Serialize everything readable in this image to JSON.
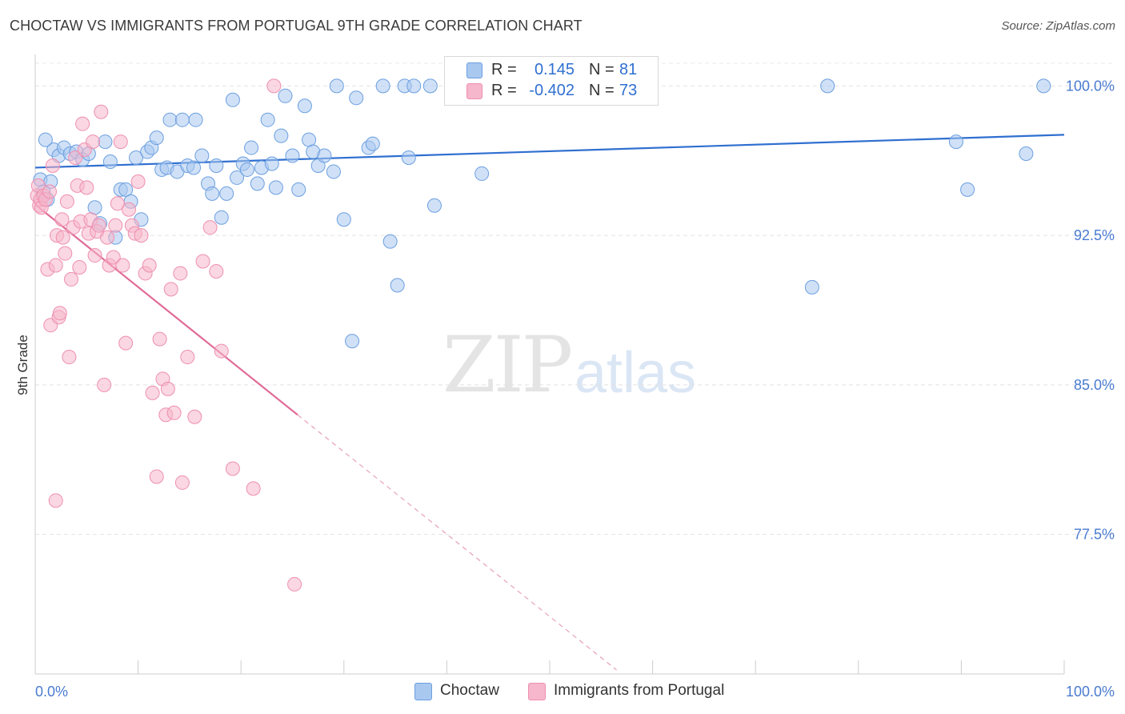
{
  "title": "CHOCTAW VS IMMIGRANTS FROM PORTUGAL 9TH GRADE CORRELATION CHART",
  "source": "Source: ZipAtlas.com",
  "watermark": {
    "part1": "ZIP",
    "part2": "atlas"
  },
  "legend": {
    "r_label": "R =",
    "n_label": "N =",
    "series": [
      {
        "r": "0.145",
        "n": "81",
        "color": "#a9c8f0"
      },
      {
        "r": "-0.402",
        "n": "73",
        "color": "#f6b6cb"
      }
    ]
  },
  "chart_data": {
    "type": "scatter",
    "title": "CHOCTAW VS IMMIGRANTS FROM PORTUGAL 9TH GRADE CORRELATION CHART",
    "xlabel": "",
    "ylabel": "9th Grade",
    "xlim": [
      0,
      100
    ],
    "ylim": [
      70.5,
      101.5
    ],
    "x_tick_labels": [
      "0.0%",
      "100.0%"
    ],
    "y_ticks": [
      77.5,
      85.0,
      92.5,
      100.0
    ],
    "y_tick_labels": [
      "77.5%",
      "85.0%",
      "92.5%",
      "100.0%"
    ],
    "grid": "horizontal dashed",
    "legend_position": "top-center",
    "series": [
      {
        "name": "Choctaw",
        "color": "#6c9fe0",
        "fill": "#a9c8f0",
        "trend": {
          "x": [
            0,
            100
          ],
          "y": [
            95.9,
            97.55
          ],
          "style": "solid"
        },
        "points": [
          [
            0.5,
            95.3
          ],
          [
            0.8,
            94.7
          ],
          [
            1.2,
            94.3
          ],
          [
            1.5,
            95.2
          ],
          [
            1.8,
            96.8
          ],
          [
            2.3,
            96.5
          ],
          [
            2.8,
            96.9
          ],
          [
            3.4,
            96.6
          ],
          [
            4.0,
            96.7
          ],
          [
            4.6,
            96.3
          ],
          [
            5.2,
            96.6
          ],
          [
            5.8,
            93.9
          ],
          [
            6.3,
            93.1
          ],
          [
            6.8,
            97.2
          ],
          [
            7.3,
            96.2
          ],
          [
            7.8,
            92.4
          ],
          [
            8.3,
            94.8
          ],
          [
            8.8,
            94.8
          ],
          [
            9.3,
            94.2
          ],
          [
            9.8,
            96.4
          ],
          [
            10.3,
            93.3
          ],
          [
            10.9,
            96.7
          ],
          [
            11.3,
            96.9
          ],
          [
            11.8,
            97.4
          ],
          [
            12.3,
            95.8
          ],
          [
            12.8,
            95.9
          ],
          [
            13.1,
            98.3
          ],
          [
            13.8,
            95.7
          ],
          [
            14.3,
            98.3
          ],
          [
            14.8,
            96.0
          ],
          [
            15.4,
            95.9
          ],
          [
            15.6,
            98.3
          ],
          [
            16.2,
            96.5
          ],
          [
            16.8,
            95.1
          ],
          [
            17.2,
            94.6
          ],
          [
            17.6,
            96.0
          ],
          [
            18.1,
            93.4
          ],
          [
            18.6,
            94.6
          ],
          [
            19.2,
            99.3
          ],
          [
            19.6,
            95.4
          ],
          [
            20.2,
            96.1
          ],
          [
            20.6,
            95.8
          ],
          [
            21.0,
            96.9
          ],
          [
            21.6,
            95.1
          ],
          [
            22.0,
            95.9
          ],
          [
            22.6,
            98.3
          ],
          [
            23.0,
            96.1
          ],
          [
            23.4,
            94.9
          ],
          [
            23.9,
            97.5
          ],
          [
            24.3,
            99.5
          ],
          [
            25.0,
            96.5
          ],
          [
            25.6,
            94.8
          ],
          [
            26.2,
            99.0
          ],
          [
            26.6,
            97.3
          ],
          [
            27.0,
            96.7
          ],
          [
            27.5,
            96.0
          ],
          [
            28.1,
            96.5
          ],
          [
            29.0,
            95.7
          ],
          [
            29.3,
            100.0
          ],
          [
            30.0,
            93.3
          ],
          [
            30.8,
            87.2
          ],
          [
            31.2,
            99.4
          ],
          [
            32.4,
            96.9
          ],
          [
            32.8,
            97.1
          ],
          [
            33.8,
            100.0
          ],
          [
            34.5,
            92.2
          ],
          [
            35.2,
            90.0
          ],
          [
            35.9,
            100.0
          ],
          [
            36.3,
            96.4
          ],
          [
            36.8,
            100.0
          ],
          [
            38.4,
            100.0
          ],
          [
            38.8,
            94.0
          ],
          [
            43.4,
            95.6
          ],
          [
            45.3,
            100.0
          ],
          [
            75.5,
            89.9
          ],
          [
            77.0,
            100.0
          ],
          [
            89.5,
            97.2
          ],
          [
            90.6,
            94.8
          ],
          [
            96.3,
            96.6
          ],
          [
            98.0,
            100.0
          ],
          [
            1.0,
            97.3
          ]
        ]
      },
      {
        "name": "Immigrants from Portugal",
        "color": "#ee8fb0",
        "fill": "#f6b6cb",
        "trend": {
          "x": [
            0,
            25.5
          ],
          "y": [
            94.05,
            83.5
          ],
          "style": "solid"
        },
        "trend_ext": {
          "x": [
            25.5,
            56.5
          ],
          "y": [
            83.5,
            70.7
          ],
          "style": "dashed"
        },
        "points": [
          [
            0.2,
            94.5
          ],
          [
            0.3,
            95.0
          ],
          [
            0.4,
            94.0
          ],
          [
            0.5,
            94.3
          ],
          [
            0.6,
            93.9
          ],
          [
            0.8,
            94.5
          ],
          [
            1.0,
            94.3
          ],
          [
            1.2,
            90.8
          ],
          [
            1.4,
            94.7
          ],
          [
            1.5,
            88.0
          ],
          [
            1.7,
            96.0
          ],
          [
            2.0,
            91.0
          ],
          [
            2.1,
            92.5
          ],
          [
            2.3,
            88.4
          ],
          [
            2.4,
            88.6
          ],
          [
            2.6,
            93.3
          ],
          [
            2.7,
            92.4
          ],
          [
            2.9,
            91.6
          ],
          [
            3.1,
            94.2
          ],
          [
            3.3,
            86.4
          ],
          [
            3.5,
            90.3
          ],
          [
            3.7,
            92.9
          ],
          [
            3.9,
            96.4
          ],
          [
            4.1,
            95.0
          ],
          [
            4.3,
            90.9
          ],
          [
            4.4,
            93.2
          ],
          [
            4.6,
            98.1
          ],
          [
            4.8,
            96.8
          ],
          [
            5.0,
            94.9
          ],
          [
            5.2,
            92.6
          ],
          [
            5.4,
            93.3
          ],
          [
            5.6,
            97.2
          ],
          [
            5.8,
            91.5
          ],
          [
            6.0,
            92.7
          ],
          [
            6.2,
            93.0
          ],
          [
            6.4,
            98.7
          ],
          [
            6.7,
            85.0
          ],
          [
            7.0,
            92.4
          ],
          [
            7.2,
            91.0
          ],
          [
            7.6,
            91.4
          ],
          [
            7.8,
            93.0
          ],
          [
            8.0,
            94.1
          ],
          [
            8.3,
            97.2
          ],
          [
            8.5,
            91.0
          ],
          [
            8.8,
            87.1
          ],
          [
            9.1,
            93.8
          ],
          [
            9.4,
            93.0
          ],
          [
            9.7,
            92.6
          ],
          [
            10.0,
            95.2
          ],
          [
            10.3,
            92.5
          ],
          [
            10.7,
            90.6
          ],
          [
            11.1,
            91.0
          ],
          [
            11.4,
            84.6
          ],
          [
            11.8,
            80.4
          ],
          [
            12.1,
            87.3
          ],
          [
            12.4,
            85.3
          ],
          [
            12.7,
            83.5
          ],
          [
            12.9,
            84.8
          ],
          [
            13.2,
            89.8
          ],
          [
            13.5,
            83.6
          ],
          [
            14.1,
            90.6
          ],
          [
            14.3,
            80.1
          ],
          [
            14.8,
            86.4
          ],
          [
            15.5,
            83.4
          ],
          [
            16.3,
            91.2
          ],
          [
            17.0,
            92.9
          ],
          [
            17.6,
            90.7
          ],
          [
            18.1,
            86.7
          ],
          [
            19.2,
            80.8
          ],
          [
            21.2,
            79.8
          ],
          [
            23.2,
            100.0
          ],
          [
            25.2,
            75.0
          ],
          [
            2.0,
            79.2
          ]
        ]
      }
    ]
  }
}
